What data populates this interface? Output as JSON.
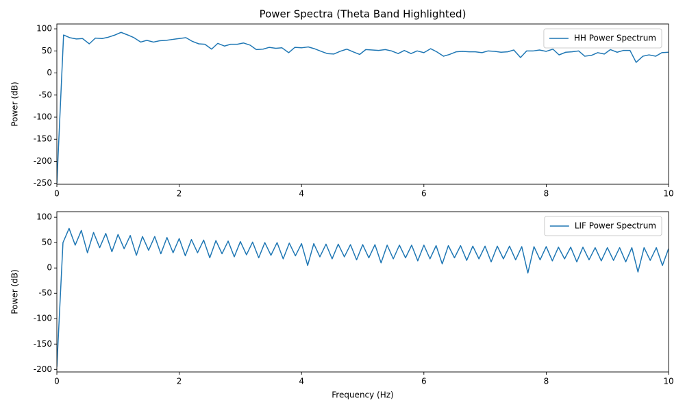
{
  "chart_data": [
    {
      "type": "line",
      "title": "Power Spectra (Theta Band Highlighted)",
      "ylabel": "Power (dB)",
      "x": [
        0,
        0.11,
        0.21,
        0.32,
        0.42,
        0.53,
        0.63,
        0.74,
        0.84,
        0.95,
        1.05,
        1.16,
        1.26,
        1.37,
        1.47,
        1.58,
        1.68,
        1.79,
        1.89,
        2.0,
        2.11,
        2.21,
        2.32,
        2.42,
        2.53,
        2.63,
        2.74,
        2.84,
        2.95,
        3.05,
        3.16,
        3.26,
        3.37,
        3.47,
        3.58,
        3.68,
        3.79,
        3.89,
        4.0,
        4.11,
        4.21,
        4.32,
        4.42,
        4.53,
        4.63,
        4.74,
        4.84,
        4.95,
        5.05,
        5.16,
        5.26,
        5.37,
        5.47,
        5.58,
        5.68,
        5.79,
        5.89,
        6.0,
        6.11,
        6.21,
        6.32,
        6.42,
        6.53,
        6.63,
        6.74,
        6.84,
        6.95,
        7.05,
        7.16,
        7.26,
        7.37,
        7.47,
        7.58,
        7.68,
        7.79,
        7.89,
        8.0,
        8.11,
        8.21,
        8.32,
        8.42,
        8.53,
        8.63,
        8.74,
        8.84,
        8.95,
        9.05,
        9.16,
        9.26,
        9.37,
        9.47,
        9.58,
        9.68,
        9.79,
        9.89,
        10.0
      ],
      "series": [
        {
          "name": "HH Power Spectrum",
          "color": "#1f77b4",
          "values": [
            -250,
            86,
            80,
            77,
            78,
            66,
            79,
            78,
            81,
            86,
            92,
            86,
            80,
            70,
            74,
            70,
            73,
            74,
            76,
            78,
            80,
            72,
            66,
            65,
            54,
            67,
            61,
            65,
            65,
            68,
            63,
            53,
            54,
            58,
            56,
            57,
            46,
            58,
            57,
            59,
            55,
            49,
            44,
            43,
            49,
            54,
            48,
            42,
            53,
            52,
            51,
            53,
            50,
            44,
            51,
            44,
            50,
            46,
            55,
            48,
            38,
            42,
            48,
            49,
            48,
            48,
            46,
            50,
            49,
            47,
            48,
            52,
            35,
            50,
            50,
            52,
            49,
            54,
            41,
            47,
            48,
            50,
            38,
            40,
            46,
            43,
            53,
            47,
            51,
            51,
            24,
            38,
            41,
            38,
            46,
            47
          ]
        }
      ],
      "xlim": [
        0,
        10
      ],
      "ylim": [
        -252,
        111
      ],
      "xticks": [
        0,
        2,
        4,
        6,
        8,
        10
      ],
      "yticks": [
        -250,
        -200,
        -150,
        -100,
        -50,
        0,
        50,
        100
      ],
      "legend": "upper right"
    },
    {
      "type": "line",
      "xlabel": "Frequency (Hz)",
      "ylabel": "Power (dB)",
      "x": [
        0,
        0.1,
        0.2,
        0.3,
        0.4,
        0.5,
        0.6,
        0.7,
        0.8,
        0.9,
        1.0,
        1.1,
        1.2,
        1.3,
        1.4,
        1.5,
        1.6,
        1.7,
        1.8,
        1.9,
        2.0,
        2.1,
        2.2,
        2.3,
        2.4,
        2.5,
        2.6,
        2.7,
        2.8,
        2.9,
        3.0,
        3.1,
        3.2,
        3.3,
        3.4,
        3.5,
        3.6,
        3.7,
        3.8,
        3.9,
        4.0,
        4.1,
        4.2,
        4.3,
        4.4,
        4.5,
        4.6,
        4.7,
        4.8,
        4.9,
        5.0,
        5.1,
        5.2,
        5.3,
        5.4,
        5.5,
        5.6,
        5.7,
        5.8,
        5.9,
        6.0,
        6.1,
        6.2,
        6.3,
        6.4,
        6.5,
        6.6,
        6.7,
        6.8,
        6.9,
        7.0,
        7.1,
        7.2,
        7.3,
        7.4,
        7.5,
        7.6,
        7.7,
        7.8,
        7.9,
        8.0,
        8.1,
        8.2,
        8.3,
        8.4,
        8.5,
        8.6,
        8.7,
        8.8,
        8.9,
        9.0,
        9.1,
        9.2,
        9.3,
        9.4,
        9.5,
        9.6,
        9.7,
        9.8,
        9.9,
        10.0
      ],
      "series": [
        {
          "name": "LIF Power Spectrum",
          "color": "#1f77b4",
          "values": [
            -195,
            50,
            78,
            45,
            74,
            30,
            70,
            40,
            68,
            32,
            66,
            38,
            64,
            25,
            62,
            35,
            62,
            28,
            60,
            30,
            58,
            24,
            56,
            30,
            55,
            20,
            54,
            28,
            53,
            22,
            52,
            26,
            51,
            20,
            50,
            25,
            50,
            18,
            49,
            24,
            48,
            5,
            48,
            22,
            47,
            18,
            47,
            22,
            46,
            16,
            46,
            20,
            46,
            10,
            45,
            18,
            45,
            20,
            45,
            14,
            45,
            18,
            44,
            8,
            44,
            20,
            44,
            15,
            43,
            18,
            43,
            12,
            43,
            18,
            43,
            16,
            42,
            -10,
            42,
            16,
            42,
            14,
            41,
            18,
            41,
            12,
            41,
            16,
            40,
            14,
            40,
            15,
            40,
            12,
            40,
            -8,
            40,
            15,
            40,
            5,
            38
          ]
        }
      ],
      "xlim": [
        0,
        10
      ],
      "ylim": [
        -205,
        111
      ],
      "xticks": [
        0,
        2,
        4,
        6,
        8,
        10
      ],
      "yticks": [
        -200,
        -150,
        -100,
        -50,
        0,
        50,
        100
      ],
      "legend": "upper right"
    }
  ]
}
